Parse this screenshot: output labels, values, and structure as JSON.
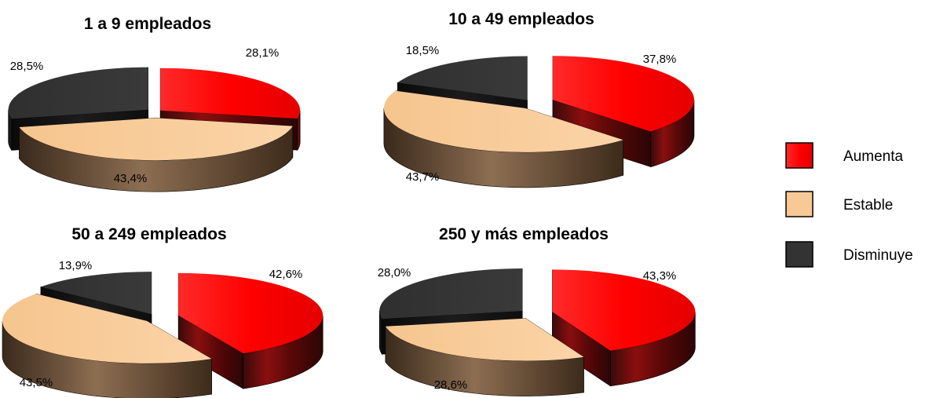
{
  "chart_data": [
    {
      "type": "pie",
      "title": "1 a 9 empleados",
      "categories": [
        "Aumenta",
        "Estable",
        "Disminuye"
      ],
      "values": [
        28.1,
        43.4,
        28.5
      ],
      "labels": [
        "28,1%",
        "43,4%",
        "28,5%"
      ]
    },
    {
      "type": "pie",
      "title": "10 a 49 empleados",
      "categories": [
        "Aumenta",
        "Estable",
        "Disminuye"
      ],
      "values": [
        37.8,
        43.7,
        18.5
      ],
      "labels": [
        "37,8%",
        "43,7%",
        "18,5%"
      ]
    },
    {
      "type": "pie",
      "title": "50 a 249 empleados",
      "categories": [
        "Aumenta",
        "Estable",
        "Disminuye"
      ],
      "values": [
        42.6,
        43.5,
        13.9
      ],
      "labels": [
        "42,6%",
        "43,5%",
        "13,9%"
      ]
    },
    {
      "type": "pie",
      "title": "250 y más empleados",
      "categories": [
        "Aumenta",
        "Estable",
        "Disminuye"
      ],
      "values": [
        43.3,
        28.6,
        28.0
      ],
      "labels": [
        "43,3%",
        "28,6%",
        "28,0%"
      ]
    }
  ],
  "legend": {
    "position": "right",
    "items": [
      {
        "label": "Aumenta",
        "color": "#ff0000"
      },
      {
        "label": "Estable",
        "color": "#f8c996"
      },
      {
        "label": "Disminuye",
        "color": "#333333"
      }
    ]
  }
}
